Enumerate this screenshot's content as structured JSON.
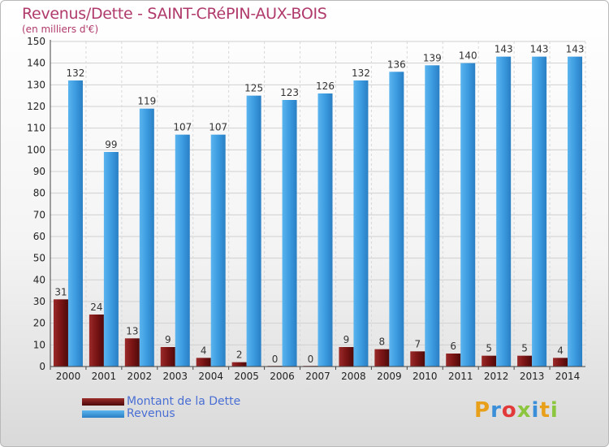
{
  "chart_data": {
    "type": "bar",
    "title": "Revenus/Dette - SAINT-CRéPIN-AUX-BOIS",
    "subtitle": "(en milliers d'€)",
    "categories": [
      "2000",
      "2001",
      "2002",
      "2003",
      "2004",
      "2005",
      "2006",
      "2007",
      "2008",
      "2009",
      "2010",
      "2011",
      "2012",
      "2013",
      "2014"
    ],
    "series": [
      {
        "name": "Montant de la Dette",
        "values": [
          31,
          24,
          13,
          9,
          4,
          2,
          0,
          0,
          9,
          8,
          7,
          6,
          5,
          5,
          4
        ],
        "color": "#7a1414"
      },
      {
        "name": "Revenus",
        "values": [
          132,
          99,
          119,
          107,
          107,
          125,
          123,
          126,
          132,
          136,
          139,
          140,
          143,
          143,
          143
        ],
        "color": "#3c9be0"
      }
    ],
    "ylim": [
      0,
      150
    ],
    "yticks": [
      0,
      10,
      20,
      30,
      40,
      50,
      60,
      70,
      80,
      90,
      100,
      110,
      120,
      130,
      140,
      150
    ],
    "grid": true,
    "legend": "bottom-left"
  },
  "logo": {
    "text": "Proxiti"
  }
}
